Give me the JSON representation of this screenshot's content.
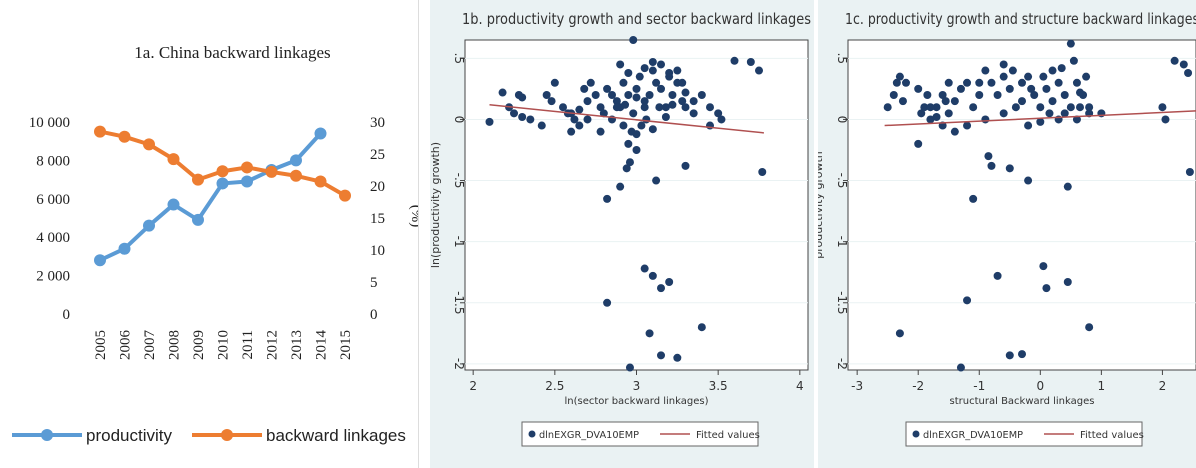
{
  "chart_data": [
    {
      "type": "line",
      "title": "1a. China backward linkages",
      "categories": [
        "2005",
        "2006",
        "2007",
        "2008",
        "2009",
        "2010",
        "2011",
        "2012",
        "2013",
        "2014",
        "2015"
      ],
      "series": [
        {
          "name": "productivity",
          "axis": "left",
          "color": "#5b9bd5",
          "values": [
            2800,
            3400,
            4600,
            5700,
            4900,
            6800,
            6900,
            7500,
            8000,
            9400,
            null
          ]
        },
        {
          "name": "backward linkages",
          "axis": "right",
          "color": "#ed7d31",
          "values": [
            28.5,
            27.7,
            26.5,
            24.2,
            21.0,
            22.3,
            22.9,
            22.2,
            21.6,
            20.7,
            18.5
          ]
        }
      ],
      "yleft_ticks": [
        "10 000",
        "8 000",
        "6 000",
        "4 000",
        "2 000",
        "0"
      ],
      "yleft_lim": [
        0,
        10000
      ],
      "yright_ticks": [
        "30",
        "25",
        "20",
        "15",
        "10",
        "5",
        "0"
      ],
      "yright_lim": [
        0,
        30
      ],
      "yright_label": "(%)",
      "legend_position": "bottom"
    },
    {
      "type": "scatter",
      "title": "1b. productivity growth and sector backward linkages",
      "xlabel": "ln(sector backward linkages)",
      "ylabel": "ln(productivity growth)",
      "xlim": [
        1.95,
        4.05
      ],
      "ylim": [
        -2.05,
        0.65
      ],
      "xticks": [
        "2",
        "2.5",
        "3",
        "3.5",
        "4"
      ],
      "yticks": [
        ".5",
        "0",
        "-.5",
        "-1",
        "-1.5",
        "-2"
      ],
      "legend": [
        "dlnEXGR_DVA10EMP",
        "Fitted values"
      ],
      "fit": {
        "x": [
          2.1,
          3.78
        ],
        "y": [
          0.12,
          -0.11
        ]
      },
      "points": [
        [
          2.1,
          -0.02
        ],
        [
          2.18,
          0.22
        ],
        [
          2.22,
          0.1
        ],
        [
          2.25,
          0.05
        ],
        [
          2.28,
          0.2
        ],
        [
          2.3,
          0.18
        ],
        [
          2.3,
          0.02
        ],
        [
          2.35,
          0.0
        ],
        [
          2.42,
          -0.05
        ],
        [
          2.45,
          0.2
        ],
        [
          2.48,
          0.15
        ],
        [
          2.5,
          0.3
        ],
        [
          2.55,
          0.1
        ],
        [
          2.58,
          0.05
        ],
        [
          2.6,
          -0.1
        ],
        [
          2.62,
          0.0
        ],
        [
          2.65,
          0.08
        ],
        [
          2.68,
          0.25
        ],
        [
          2.7,
          0.15
        ],
        [
          2.72,
          0.3
        ],
        [
          2.75,
          0.2
        ],
        [
          2.78,
          0.1
        ],
        [
          2.8,
          0.05
        ],
        [
          2.82,
          0.25
        ],
        [
          2.85,
          0.2
        ],
        [
          2.88,
          0.15
        ],
        [
          2.9,
          0.1
        ],
        [
          2.92,
          0.3
        ],
        [
          2.95,
          0.2
        ],
        [
          2.98,
          0.05
        ],
        [
          3.0,
          0.25
        ],
        [
          3.02,
          0.35
        ],
        [
          3.05,
          0.15
        ],
        [
          3.08,
          0.2
        ],
        [
          3.1,
          0.4
        ],
        [
          3.12,
          0.3
        ],
        [
          3.15,
          0.25
        ],
        [
          3.18,
          0.1
        ],
        [
          3.2,
          0.35
        ],
        [
          3.22,
          0.2
        ],
        [
          3.25,
          0.3
        ],
        [
          3.28,
          0.15
        ],
        [
          3.3,
          0.1
        ],
        [
          3.35,
          0.05
        ],
        [
          3.4,
          0.2
        ],
        [
          3.45,
          0.1
        ],
        [
          3.5,
          0.05
        ],
        [
          3.52,
          0.0
        ],
        [
          3.6,
          0.48
        ],
        [
          3.7,
          0.47
        ],
        [
          3.75,
          0.4
        ],
        [
          3.77,
          -0.43
        ],
        [
          2.98,
          0.65
        ],
        [
          2.9,
          0.45
        ],
        [
          2.95,
          0.38
        ],
        [
          3.05,
          0.42
        ],
        [
          3.1,
          0.47
        ],
        [
          3.15,
          0.45
        ],
        [
          3.2,
          0.38
        ],
        [
          3.25,
          0.4
        ],
        [
          2.85,
          0.0
        ],
        [
          2.92,
          -0.05
        ],
        [
          2.97,
          -0.1
        ],
        [
          3.0,
          -0.12
        ],
        [
          3.03,
          -0.05
        ],
        [
          3.06,
          0.0
        ],
        [
          3.1,
          -0.08
        ],
        [
          2.95,
          -0.2
        ],
        [
          2.96,
          -0.35
        ],
        [
          2.94,
          -0.4
        ],
        [
          2.9,
          -0.55
        ],
        [
          3.12,
          -0.5
        ],
        [
          3.3,
          -0.38
        ],
        [
          3.45,
          -0.05
        ],
        [
          2.82,
          -0.65
        ],
        [
          2.78,
          -0.1
        ],
        [
          2.7,
          0.0
        ],
        [
          3.0,
          -0.25
        ],
        [
          3.05,
          -1.22
        ],
        [
          3.1,
          -1.28
        ],
        [
          3.15,
          -1.38
        ],
        [
          3.2,
          -1.33
        ],
        [
          2.82,
          -1.5
        ],
        [
          3.08,
          -1.75
        ],
        [
          3.15,
          -1.93
        ],
        [
          3.25,
          -1.95
        ],
        [
          3.4,
          -1.7
        ],
        [
          2.96,
          -2.03
        ],
        [
          2.88,
          0.1
        ],
        [
          3.18,
          0.02
        ],
        [
          3.22,
          0.12
        ],
        [
          3.3,
          0.22
        ],
        [
          2.6,
          0.05
        ],
        [
          2.65,
          -0.05
        ],
        [
          3.35,
          0.15
        ],
        [
          3.05,
          0.1
        ],
        [
          3.28,
          0.3
        ],
        [
          3.0,
          0.18
        ],
        [
          3.14,
          0.1
        ],
        [
          2.93,
          0.12
        ]
      ]
    },
    {
      "type": "scatter",
      "title": "1c. productivity growth and structure backward linkages",
      "xlabel": "structural Backward linkages",
      "ylabel": "productivity growth",
      "xlim": [
        -3.15,
        2.55
      ],
      "ylim": [
        -2.05,
        0.65
      ],
      "xticks": [
        "-3",
        "-2",
        "-1",
        "0",
        "1",
        "2"
      ],
      "yticks": [
        ".5",
        "0",
        "-.5",
        "-1",
        "-1.5",
        "-2"
      ],
      "legend": [
        "dlnEXGR_DVA10EMP",
        "Fitted values"
      ],
      "fit": {
        "x": [
          -2.55,
          2.55
        ],
        "y": [
          -0.05,
          0.07
        ]
      },
      "points": [
        [
          -2.5,
          0.1
        ],
        [
          -2.4,
          0.2
        ],
        [
          -2.35,
          0.3
        ],
        [
          -2.3,
          0.35
        ],
        [
          -2.25,
          0.15
        ],
        [
          -2.2,
          0.3
        ],
        [
          -2.0,
          0.25
        ],
        [
          -1.95,
          0.05
        ],
        [
          -1.9,
          0.1
        ],
        [
          -1.85,
          0.2
        ],
        [
          -1.8,
          0.0
        ],
        [
          -1.7,
          0.1
        ],
        [
          -1.6,
          0.2
        ],
        [
          -1.5,
          0.05
        ],
        [
          -1.4,
          0.15
        ],
        [
          -1.3,
          0.25
        ],
        [
          -1.2,
          0.3
        ],
        [
          -1.1,
          0.1
        ],
        [
          -1.0,
          0.2
        ],
        [
          -0.9,
          0.4
        ],
        [
          -0.8,
          0.3
        ],
        [
          -0.7,
          0.2
        ],
        [
          -0.6,
          0.35
        ],
        [
          -0.5,
          0.25
        ],
        [
          -0.4,
          0.1
        ],
        [
          -0.3,
          0.3
        ],
        [
          -0.2,
          0.35
        ],
        [
          -0.1,
          0.2
        ],
        [
          0.0,
          0.1
        ],
        [
          0.1,
          0.25
        ],
        [
          0.2,
          0.15
        ],
        [
          0.3,
          0.3
        ],
        [
          0.4,
          0.2
        ],
        [
          0.5,
          0.1
        ],
        [
          0.55,
          0.48
        ],
        [
          0.5,
          0.62
        ],
        [
          0.6,
          0.3
        ],
        [
          0.7,
          0.2
        ],
        [
          0.75,
          0.35
        ],
        [
          0.8,
          0.05
        ],
        [
          -2.0,
          -0.2
        ],
        [
          -1.6,
          -0.05
        ],
        [
          -1.4,
          -0.1
        ],
        [
          -1.2,
          -0.05
        ],
        [
          -1.1,
          -0.65
        ],
        [
          -0.85,
          -0.3
        ],
        [
          -0.8,
          -0.38
        ],
        [
          -0.5,
          -0.4
        ],
        [
          -0.2,
          -0.5
        ],
        [
          0.45,
          -0.55
        ],
        [
          -0.2,
          -0.05
        ],
        [
          0.0,
          -0.02
        ],
        [
          0.3,
          0.0
        ],
        [
          0.6,
          0.0
        ],
        [
          0.8,
          0.1
        ],
        [
          1.0,
          0.05
        ],
        [
          -0.6,
          0.05
        ],
        [
          -0.9,
          0.0
        ],
        [
          -1.7,
          0.02
        ],
        [
          -2.3,
          -1.75
        ],
        [
          -1.3,
          -2.03
        ],
        [
          -0.5,
          -1.93
        ],
        [
          -0.3,
          -1.92
        ],
        [
          0.8,
          -1.7
        ],
        [
          -1.2,
          -1.48
        ],
        [
          -0.7,
          -1.28
        ],
        [
          0.05,
          -1.2
        ],
        [
          0.1,
          -1.38
        ],
        [
          0.45,
          -1.33
        ],
        [
          2.0,
          0.1
        ],
        [
          2.05,
          0.0
        ],
        [
          2.2,
          0.48
        ],
        [
          2.35,
          0.45
        ],
        [
          2.42,
          0.38
        ],
        [
          2.45,
          -0.43
        ],
        [
          -1.8,
          0.1
        ],
        [
          -1.5,
          0.3
        ],
        [
          -1.0,
          0.3
        ],
        [
          -0.3,
          0.15
        ],
        [
          0.2,
          0.4
        ],
        [
          0.35,
          0.42
        ],
        [
          0.65,
          0.1
        ],
        [
          -0.6,
          0.45
        ],
        [
          -0.45,
          0.4
        ],
        [
          0.05,
          0.35
        ],
        [
          0.15,
          0.05
        ],
        [
          -1.55,
          0.15
        ],
        [
          -0.15,
          0.25
        ],
        [
          0.65,
          0.22
        ],
        [
          0.4,
          0.05
        ]
      ]
    }
  ]
}
